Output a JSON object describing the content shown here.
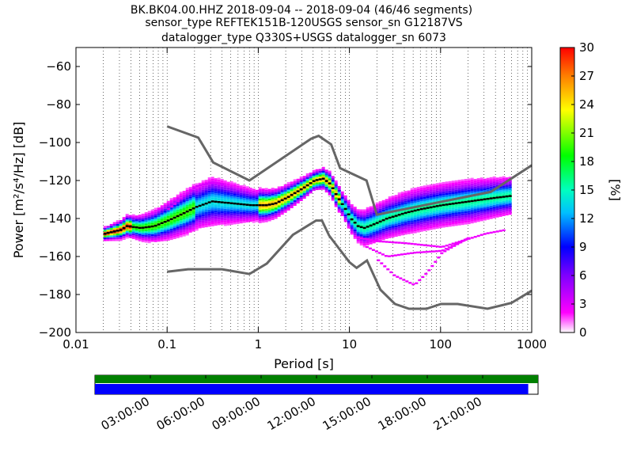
{
  "chart_data": {
    "type": "heatmap",
    "title_lines": [
      "BK.BK04.00.HHZ   2018-09-04 -- 2018-09-04  (46/46 segments)",
      "sensor_type REFTEK151B-120USGS sensor_sn G12187VS",
      "datalogger_type Q330S+USGS datalogger_sn 6073"
    ],
    "xlabel": "Period [s]",
    "ylabel": "Power [m²/s⁴/Hz] [dB]",
    "x_scale": "log",
    "xlim": [
      0.01,
      1000
    ],
    "x_ticks": [
      {
        "value": 0.01,
        "label": "0.01"
      },
      {
        "value": 0.1,
        "label": "0.1"
      },
      {
        "value": 1,
        "label": "1"
      },
      {
        "value": 10,
        "label": "10"
      },
      {
        "value": 100,
        "label": "100"
      },
      {
        "value": 1000,
        "label": "1000"
      }
    ],
    "ylim": [
      -200,
      -50
    ],
    "y_ticks": [
      -60,
      -80,
      -100,
      -120,
      -140,
      -160,
      -180,
      -200
    ],
    "y_tick_labels": [
      "−60",
      "−80",
      "−100",
      "−120",
      "−140",
      "−160",
      "−180",
      "−200"
    ],
    "grid": "dotted vertical lines at log period ticks",
    "colorbar": {
      "label": "[%]",
      "range": [
        0,
        30
      ],
      "ticks": [
        0,
        3,
        6,
        9,
        12,
        15,
        18,
        21,
        24,
        27,
        30
      ],
      "colors": [
        "#ffffff",
        "#ff00ff",
        "#7f00ff",
        "#0000ff",
        "#00bfff",
        "#00ffbf",
        "#00ff00",
        "#ffff00",
        "#ff7f00",
        "#ff0000"
      ]
    },
    "noise_models": {
      "color": "#666666",
      "high": [
        [
          0.1,
          -91.5
        ],
        [
          0.22,
          -97.4
        ],
        [
          0.32,
          -110.5
        ],
        [
          0.8,
          -120
        ],
        [
          3.8,
          -98
        ],
        [
          4.6,
          -96.5
        ],
        [
          6.3,
          -101
        ],
        [
          7.9,
          -113.5
        ],
        [
          15.4,
          -120
        ],
        [
          20,
          -138
        ],
        [
          354.8,
          -126
        ],
        [
          1000,
          -112
        ]
      ],
      "low": [
        [
          0.1,
          -168
        ],
        [
          0.17,
          -166.7
        ],
        [
          0.4,
          -166.7
        ],
        [
          0.8,
          -169.2
        ],
        [
          1.24,
          -163.7
        ],
        [
          2.4,
          -148.6
        ],
        [
          4.3,
          -141.1
        ],
        [
          5,
          -141.1
        ],
        [
          6,
          -149
        ],
        [
          10,
          -163
        ],
        [
          12,
          -166
        ],
        [
          15.6,
          -162.1
        ],
        [
          21.9,
          -177.5
        ],
        [
          31.6,
          -185
        ],
        [
          45,
          -187.5
        ],
        [
          70,
          -187.5
        ],
        [
          101,
          -185
        ],
        [
          154,
          -185
        ],
        [
          328,
          -187.5
        ],
        [
          600,
          -184.4
        ],
        [
          1000,
          -178
        ]
      ]
    },
    "mode_curve": [
      [
        0.02,
        -148
      ],
      [
        0.03,
        -146
      ],
      [
        0.035,
        -144
      ],
      [
        0.05,
        -145
      ],
      [
        0.07,
        -144
      ],
      [
        0.1,
        -141
      ],
      [
        0.15,
        -137
      ],
      [
        0.2,
        -134
      ],
      [
        0.3,
        -131
      ],
      [
        0.5,
        -132
      ],
      [
        0.8,
        -133
      ],
      [
        1.2,
        -133
      ],
      [
        1.5,
        -132
      ],
      [
        2,
        -129
      ],
      [
        3,
        -124
      ],
      [
        4,
        -120
      ],
      [
        5,
        -119
      ],
      [
        6,
        -122
      ],
      [
        7,
        -128
      ],
      [
        9,
        -136
      ],
      [
        10,
        -140
      ],
      [
        12,
        -144
      ],
      [
        14,
        -145
      ],
      [
        18,
        -143
      ],
      [
        25,
        -140
      ],
      [
        40,
        -137
      ],
      [
        60,
        -135
      ],
      [
        100,
        -133
      ],
      [
        200,
        -131
      ],
      [
        400,
        -129
      ],
      [
        600,
        -128
      ]
    ],
    "density_bands": {
      "main_spread_db": [
        [
          0.02,
          2
        ],
        [
          0.05,
          4
        ],
        [
          0.1,
          6
        ],
        [
          0.3,
          8
        ],
        [
          1,
          5
        ],
        [
          2,
          4
        ],
        [
          4,
          3
        ],
        [
          8,
          4
        ],
        [
          15,
          6
        ],
        [
          50,
          7
        ],
        [
          200,
          7
        ],
        [
          600,
          6
        ]
      ],
      "low_outlier_segments": [
        [
          [
            12,
            -150
          ],
          [
            20,
            -152
          ],
          [
            40,
            -153
          ],
          [
            100,
            -155
          ],
          [
            300,
            -148
          ],
          [
            500,
            -146
          ]
        ],
        [
          [
            15,
            -155
          ],
          [
            25,
            -160
          ],
          [
            50,
            -158
          ],
          [
            100,
            -157
          ],
          [
            200,
            -150
          ]
        ],
        [
          [
            20,
            -162
          ],
          [
            30,
            -170
          ],
          [
            50,
            -175
          ],
          [
            70,
            -168
          ],
          [
            100,
            -158
          ],
          [
            200,
            -150
          ]
        ]
      ],
      "high_outlier_segment": [
        [
          0.1,
          -135
        ],
        [
          0.15,
          -128
        ],
        [
          0.2,
          -123
        ],
        [
          0.3,
          -121
        ],
        [
          0.4,
          -122
        ]
      ]
    },
    "timeline": {
      "tick_labels": [
        "03:00:00",
        "06:00:00",
        "09:00:00",
        "12:00:00",
        "15:00:00",
        "18:00:00",
        "21:00:00"
      ],
      "tick_hours": [
        3,
        6,
        9,
        12,
        15,
        18,
        21
      ],
      "range_hours": [
        0,
        24
      ],
      "data_coverage_end_hours": 24,
      "processed_coverage_end_hours": 23.47,
      "colors": {
        "data": "#008000",
        "processed": "#0000ff"
      }
    }
  }
}
